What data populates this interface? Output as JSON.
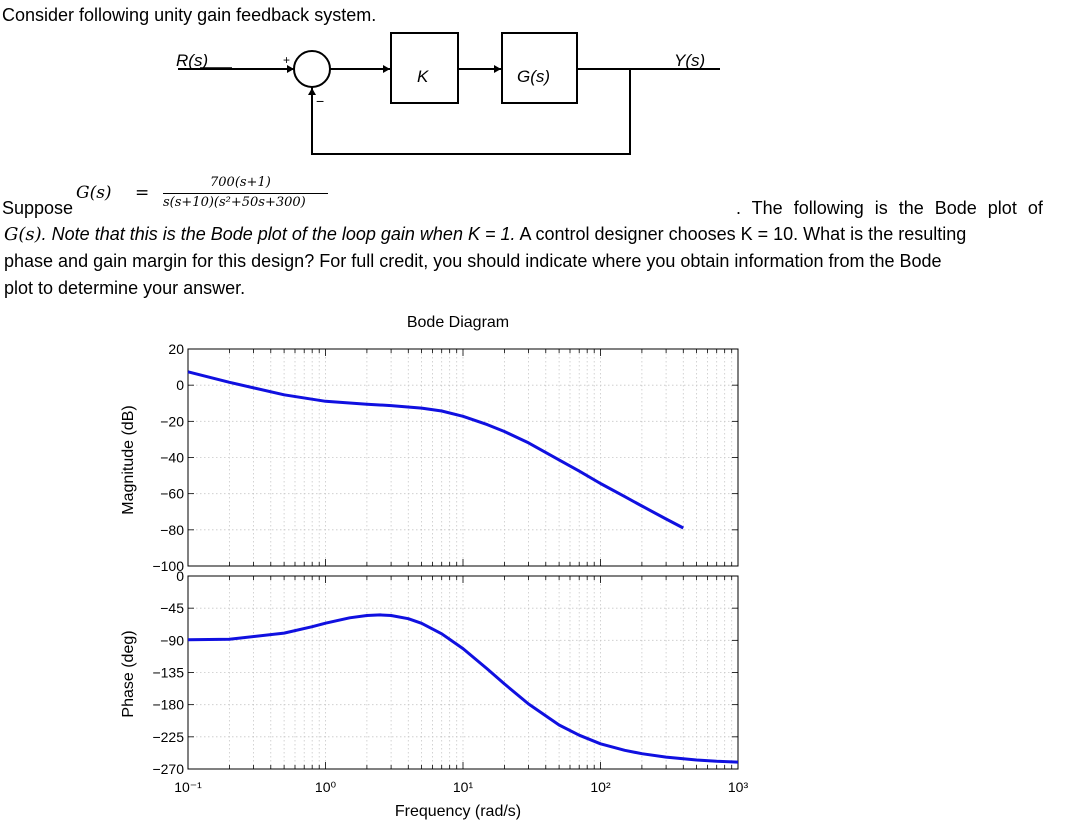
{
  "problem": {
    "intro": "Consider following unity gain feedback system.",
    "suppose_word": "Suppose",
    "equation_lhs": "G(s)",
    "equation_eq": "=",
    "equation_num": "700(s+1)",
    "equation_den": "s(s+10)(s²+50s+300)",
    "line1_tail": ". The following is the Bode plot of",
    "line2_gs": "G(s)",
    "line2_italic": ". Note that this is the Bode plot of the loop gain when K = 1.",
    "line2_rest": " A control designer chooses K = 10. What is the resulting",
    "line3": "phase and gain margin for this design? For full credit, you should indicate where you obtain information from the Bode",
    "line4": "plot to determine your answer."
  },
  "block_diagram": {
    "input_label": "R(s)",
    "plus_sign": "+",
    "minus_sign": "−",
    "controller_label": "K",
    "plant_label": "G(s)",
    "output_label": "Y(s)"
  },
  "chart_data": {
    "type": "line",
    "title": "Bode Diagram",
    "xlabel": "Frequency (rad/s)",
    "xscale": "log",
    "xlim": [
      0.1,
      1000
    ],
    "x_tick_labels": [
      "10⁻¹",
      "10⁰",
      "10¹",
      "10²",
      "10³"
    ],
    "grid": true,
    "color": "#1010e0",
    "panels": [
      {
        "name": "magnitude",
        "ylabel": "Magnitude (dB)",
        "ylim": [
          -100,
          20
        ],
        "y_ticks": [
          20,
          0,
          -20,
          -40,
          -60,
          -80,
          -100
        ],
        "series": [
          {
            "x": [
              0.1,
              0.2,
              0.5,
              1,
              2,
              3,
              5,
              7,
              10,
              15,
              20,
              30,
              50,
              70,
              100,
              150,
              200,
              300,
              400
            ],
            "y": [
              7.4,
              1.6,
              -5.3,
              -8.9,
              -10.6,
              -11.3,
              -12.7,
              -14.3,
              -17.2,
              -21.8,
              -25.6,
              -31.9,
              -41.3,
              -47.5,
              -54.4,
              -61.6,
              -66.8,
              -74.0,
              -79.0
            ]
          }
        ]
      },
      {
        "name": "phase",
        "ylabel": "Phase (deg)",
        "ylim": [
          -270,
          0
        ],
        "y_ticks": [
          0,
          -45,
          -90,
          -135,
          -180,
          -225,
          -270
        ],
        "series": [
          {
            "x": [
              0.1,
              0.2,
              0.5,
              0.8,
              1,
              1.5,
              2,
              2.5,
              3,
              4,
              5,
              7,
              10,
              15,
              20,
              30,
              50,
              70,
              100,
              150,
              200,
              300,
              500,
              700,
              1000
            ],
            "y": [
              -89.2,
              -88.5,
              -79.9,
              -70.9,
              -66.1,
              -58.5,
              -55.3,
              -54.4,
              -55.2,
              -59.7,
              -66.2,
              -80.8,
              -101.5,
              -130.0,
              -150.9,
              -179.0,
              -208.4,
              -222.7,
              -234.7,
              -243.8,
              -248.6,
              -253.3,
              -257.4,
              -259.2,
              -260.4
            ]
          }
        ]
      }
    ]
  }
}
